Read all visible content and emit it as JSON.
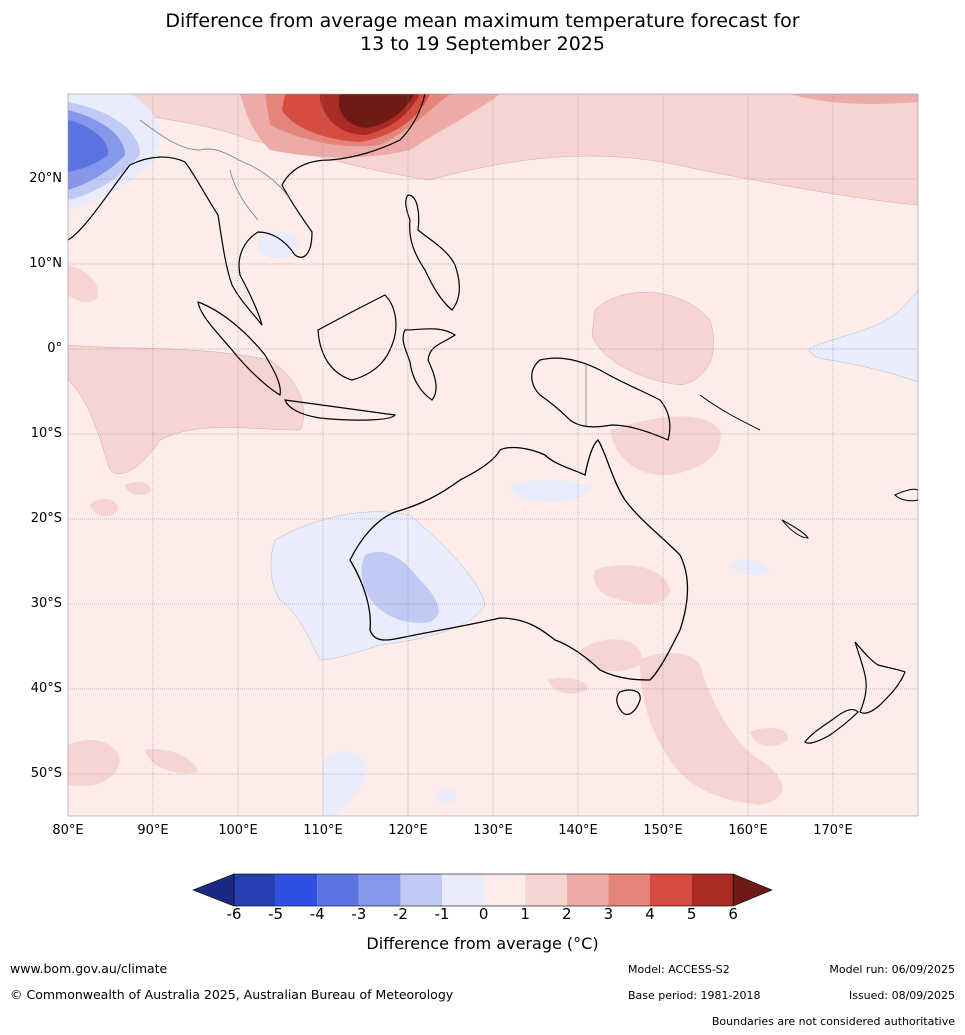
{
  "title_line1": "Difference from average mean maximum temperature forecast for",
  "title_line2": "13 to 19 September 2025",
  "lat_labels": [
    "20°N",
    "10°N",
    "0°",
    "10°S",
    "20°S",
    "30°S",
    "40°S",
    "50°S"
  ],
  "lon_labels": [
    "80°E",
    "90°E",
    "100°E",
    "110°E",
    "120°E",
    "130°E",
    "140°E",
    "150°E",
    "160°E",
    "170°E"
  ],
  "colorbar": {
    "ticks": [
      "-6",
      "-5",
      "-4",
      "-3",
      "-2",
      "-1",
      "0",
      "1",
      "2",
      "3",
      "4",
      "5",
      "6"
    ],
    "colors": [
      "#1b2a80",
      "#263fb0",
      "#2f50e0",
      "#5b74e2",
      "#8597ea",
      "#c0caf4",
      "#e8ecfb",
      "#fcecea",
      "#f6d4d2",
      "#ecaba6",
      "#e4857c",
      "#d84b40",
      "#a92b23",
      "#6e1a17"
    ],
    "label": "Difference from average (°C)"
  },
  "footer": {
    "url": "www.bom.gov.au/climate",
    "copyright": "© Commonwealth of Australia 2025, Australian Bureau of Meteorology",
    "model": "Model: ACCESS-S2",
    "base_period": "Base period: 1981-2018",
    "model_run": "Model run: 06/09/2025",
    "issued": "Issued: 08/09/2025",
    "disclaimer": "Boundaries are not considered authoritative"
  }
}
